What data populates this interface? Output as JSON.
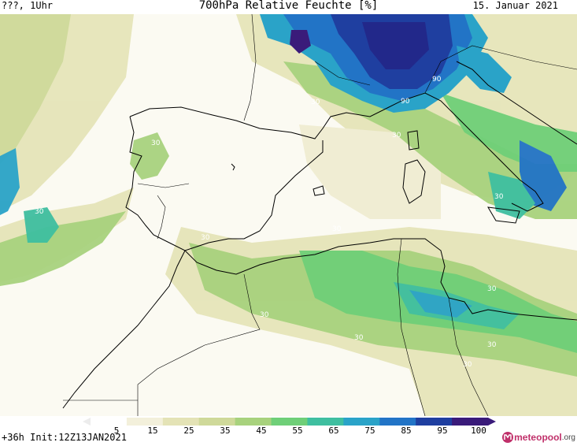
{
  "header": {
    "left": "???, 1Uhr",
    "title": "700hPa Relative Feuchte [%]",
    "date": "15. Januar 2021"
  },
  "map": {
    "contour_labels": [
      "30",
      "30",
      "30",
      "30",
      "30",
      "30",
      "30",
      "30",
      "30",
      "30",
      "30",
      "30",
      "90",
      "90",
      "30"
    ]
  },
  "colorbar": {
    "ticks": [
      "5",
      "15",
      "25",
      "35",
      "45",
      "55",
      "65",
      "75",
      "85",
      "95",
      "100"
    ],
    "colors": [
      "#ffffff",
      "#f3f0db",
      "#e4e3b6",
      "#cfd99a",
      "#a8d27d",
      "#6fcf78",
      "#3fbfa0",
      "#2aa3c8",
      "#2274c6",
      "#1f3fa0",
      "#3a1b7a"
    ]
  },
  "footer": {
    "run_info": "+36h Init:12Z13JAN2021",
    "logo_text": "meteopool",
    "logo_suffix": ".org"
  }
}
